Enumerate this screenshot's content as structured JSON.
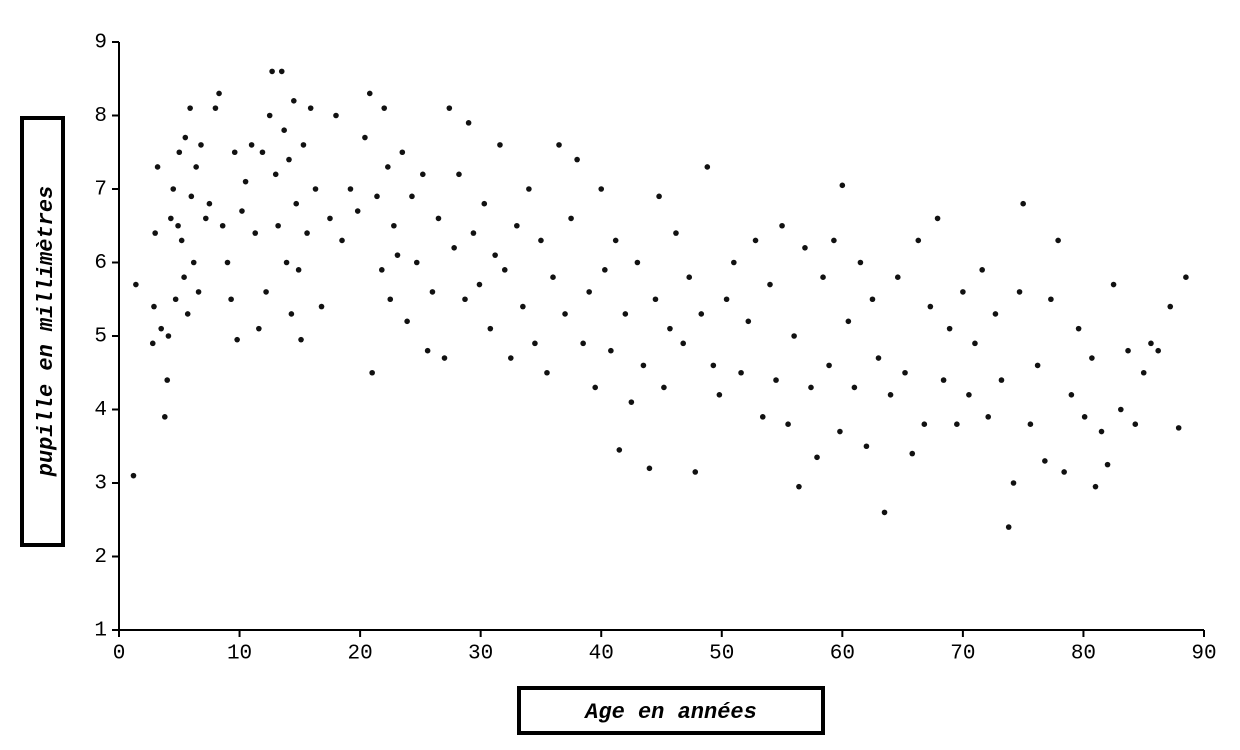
{
  "chart_data": {
    "type": "scatter",
    "x_label": "Age en années",
    "y_label": "pupille en millimètres",
    "color": "#111111",
    "xlim": [
      0,
      90
    ],
    "ylim": [
      1,
      9
    ],
    "xticks": [
      0,
      10,
      20,
      30,
      40,
      50,
      60,
      70,
      80,
      90
    ],
    "yticks": [
      1,
      2,
      3,
      4,
      5,
      6,
      7,
      8,
      9
    ],
    "x": [
      1.2,
      1.4,
      2.8,
      2.9,
      3.0,
      3.2,
      3.5,
      3.8,
      4.0,
      4.1,
      4.3,
      4.5,
      4.7,
      4.9,
      5.0,
      5.2,
      5.4,
      5.5,
      5.7,
      5.9,
      6.0,
      6.2,
      6.4,
      6.6,
      6.8,
      7.2,
      7.5,
      8.0,
      8.3,
      8.6,
      9.0,
      9.3,
      9.6,
      9.8,
      10.2,
      10.5,
      11.0,
      11.3,
      11.6,
      11.9,
      12.2,
      12.5,
      12.7,
      13.0,
      13.2,
      13.5,
      13.7,
      13.9,
      14.1,
      14.3,
      14.5,
      14.7,
      14.9,
      15.1,
      15.3,
      15.6,
      15.9,
      16.3,
      16.8,
      17.5,
      18.0,
      18.5,
      19.2,
      19.8,
      20.4,
      20.8,
      21.0,
      21.4,
      21.8,
      22.0,
      22.3,
      22.5,
      22.8,
      23.1,
      23.5,
      23.9,
      24.3,
      24.7,
      25.2,
      25.6,
      26.0,
      26.5,
      27.0,
      27.4,
      27.8,
      28.2,
      28.7,
      29.0,
      29.4,
      29.9,
      30.3,
      30.8,
      31.2,
      31.6,
      32.0,
      32.5,
      33.0,
      33.5,
      34.0,
      34.5,
      35.0,
      35.5,
      36.0,
      36.5,
      37.0,
      37.5,
      38.0,
      38.5,
      39.0,
      39.5,
      40.0,
      40.3,
      40.8,
      41.2,
      41.5,
      42.0,
      42.5,
      43.0,
      43.5,
      44.0,
      44.5,
      44.8,
      45.2,
      45.7,
      46.2,
      46.8,
      47.3,
      47.8,
      48.3,
      48.8,
      49.3,
      49.8,
      50.4,
      51.0,
      51.6,
      52.2,
      52.8,
      53.4,
      54.0,
      54.5,
      55.0,
      55.5,
      56.0,
      56.4,
      56.9,
      57.4,
      57.9,
      58.4,
      58.9,
      59.3,
      59.8,
      60.0,
      60.5,
      61.0,
      61.5,
      62.0,
      62.5,
      63.0,
      63.5,
      64.0,
      64.6,
      65.2,
      65.8,
      66.3,
      66.8,
      67.3,
      67.9,
      68.4,
      68.9,
      69.5,
      70.0,
      70.5,
      71.0,
      71.6,
      72.1,
      72.7,
      73.2,
      73.8,
      74.2,
      74.7,
      75.0,
      75.6,
      76.2,
      76.8,
      77.3,
      77.9,
      78.4,
      79.0,
      79.6,
      80.1,
      80.7,
      81.0,
      81.5,
      82.0,
      82.5,
      83.1,
      83.7,
      84.3,
      85.0,
      85.6,
      86.2,
      87.2,
      87.9,
      88.5
    ],
    "values": [
      3.1,
      5.7,
      4.9,
      5.4,
      6.4,
      7.3,
      5.1,
      3.9,
      4.4,
      5.0,
      6.6,
      7.0,
      5.5,
      6.5,
      7.5,
      6.3,
      5.8,
      7.7,
      5.3,
      8.1,
      6.9,
      6.0,
      7.3,
      5.6,
      7.6,
      6.6,
      6.8,
      8.1,
      8.3,
      6.5,
      6.0,
      5.5,
      7.5,
      4.95,
      6.7,
      7.1,
      7.6,
      6.4,
      5.1,
      7.5,
      5.6,
      8.0,
      8.6,
      7.2,
      6.5,
      8.6,
      7.8,
      6.0,
      7.4,
      5.3,
      8.2,
      6.8,
      5.9,
      4.95,
      7.6,
      6.4,
      8.1,
      7.0,
      5.4,
      6.6,
      8.0,
      6.3,
      7.0,
      6.7,
      7.7,
      8.3,
      4.5,
      6.9,
      5.9,
      8.1,
      7.3,
      5.5,
      6.5,
      6.1,
      7.5,
      5.2,
      6.9,
      6.0,
      7.2,
      4.8,
      5.6,
      6.6,
      4.7,
      8.1,
      6.2,
      7.2,
      5.5,
      7.9,
      6.4,
      5.7,
      6.8,
      5.1,
      6.1,
      7.6,
      5.9,
      4.7,
      6.5,
      5.4,
      7.0,
      4.9,
      6.3,
      4.5,
      5.8,
      7.6,
      5.3,
      6.6,
      7.4,
      4.9,
      5.6,
      4.3,
      7.0,
      5.9,
      4.8,
      6.3,
      3.45,
      5.3,
      4.1,
      6.0,
      4.6,
      3.2,
      5.5,
      6.9,
      4.3,
      5.1,
      6.4,
      4.9,
      5.8,
      3.15,
      5.3,
      7.3,
      4.6,
      4.2,
      5.5,
      6.0,
      4.5,
      5.2,
      6.3,
      3.9,
      5.7,
      4.4,
      6.5,
      3.8,
      5.0,
      2.95,
      6.2,
      4.3,
      3.35,
      5.8,
      4.6,
      6.3,
      3.7,
      7.05,
      5.2,
      4.3,
      6.0,
      3.5,
      5.5,
      4.7,
      2.6,
      4.2,
      5.8,
      4.5,
      3.4,
      6.3,
      3.8,
      5.4,
      6.6,
      4.4,
      5.1,
      3.8,
      5.6,
      4.2,
      4.9,
      5.9,
      3.9,
      5.3,
      4.4,
      2.4,
      3.0,
      5.6,
      6.8,
      3.8,
      4.6,
      3.3,
      5.5,
      6.3,
      3.15,
      4.2,
      5.1,
      3.9,
      4.7,
      2.95,
      3.7,
      3.25,
      5.7,
      4.0,
      4.8,
      3.8,
      4.5,
      4.9,
      4.8,
      5.4,
      3.75,
      5.8
    ]
  }
}
